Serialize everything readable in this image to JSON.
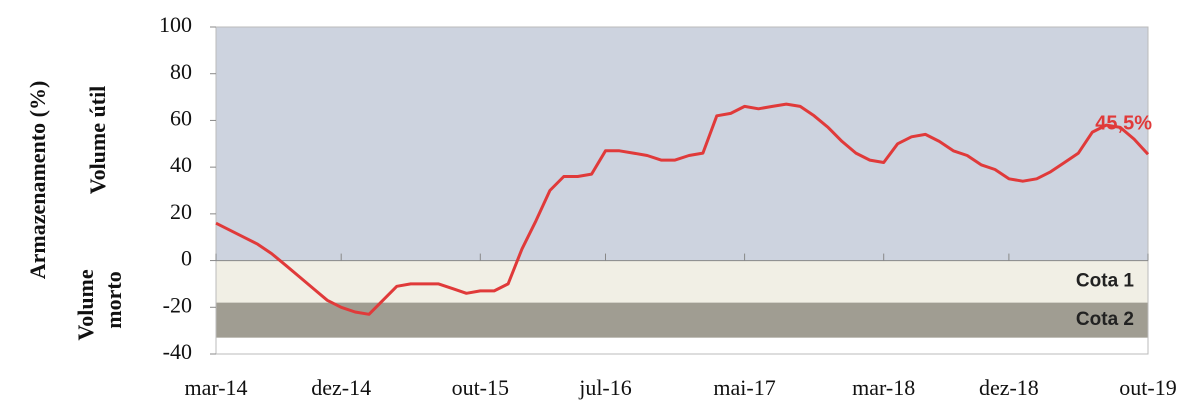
{
  "chart_data": {
    "type": "line",
    "ylabel": "Armazenamento (%)",
    "sections": [
      {
        "label": "Volume útil"
      },
      {
        "label_lines": [
          "Volume",
          "morto"
        ]
      }
    ],
    "bands": [
      {
        "from": 0,
        "to": 100,
        "color": "#cdd3df"
      },
      {
        "name": "Cota 1",
        "from": 0,
        "to": -18,
        "color": "#f1efe5"
      },
      {
        "name": "Cota 2",
        "from": -18,
        "to": -33,
        "color": "#a09d92"
      }
    ],
    "categories": [
      "mar-14",
      null,
      null,
      null,
      null,
      null,
      null,
      null,
      null,
      "dez-14",
      null,
      null,
      null,
      null,
      null,
      null,
      null,
      null,
      null,
      "out-15",
      null,
      null,
      null,
      null,
      null,
      null,
      null,
      null,
      "jul-16",
      null,
      null,
      null,
      null,
      null,
      null,
      null,
      null,
      null,
      "mai-17",
      null,
      null,
      null,
      null,
      null,
      null,
      null,
      null,
      null,
      "mar-18",
      null,
      null,
      null,
      null,
      null,
      null,
      null,
      null,
      "dez-18",
      null,
      null,
      null,
      null,
      null,
      null,
      null,
      null,
      null,
      "out-19"
    ],
    "series": [
      {
        "color": "#e03a3a",
        "values": [
          16,
          13,
          10,
          7,
          3,
          -2,
          -7,
          -12,
          -17,
          -20,
          -22,
          -23,
          -17,
          -11,
          -10,
          -10,
          -10,
          -12,
          -14,
          -13,
          -13,
          -10,
          5,
          17,
          30,
          36,
          36,
          37,
          47,
          47,
          46,
          45,
          43,
          43,
          45,
          46,
          62,
          63,
          66,
          65,
          66,
          67,
          66,
          62,
          57,
          51,
          46,
          43,
          42,
          50,
          53,
          54,
          51,
          47,
          45,
          41,
          39,
          35,
          34,
          35,
          38,
          42,
          46,
          55,
          58,
          57,
          52,
          45.5
        ],
        "value_labels": [
          null,
          null,
          null,
          null,
          null,
          null,
          null,
          null,
          null,
          null,
          null,
          null,
          null,
          null,
          null,
          null,
          null,
          null,
          null,
          null,
          null,
          null,
          null,
          null,
          null,
          null,
          null,
          null,
          null,
          null,
          null,
          null,
          null,
          null,
          null,
          null,
          null,
          null,
          null,
          null,
          null,
          null,
          null,
          null,
          null,
          null,
          null,
          null,
          null,
          null,
          null,
          null,
          null,
          null,
          null,
          null,
          null,
          null,
          null,
          null,
          null,
          null,
          null,
          null,
          null,
          null,
          null,
          "45,5%"
        ]
      }
    ],
    "ylim": [
      -40,
      100
    ],
    "yticks": [
      -40,
      -20,
      0,
      20,
      40,
      60,
      80,
      100
    ]
  }
}
